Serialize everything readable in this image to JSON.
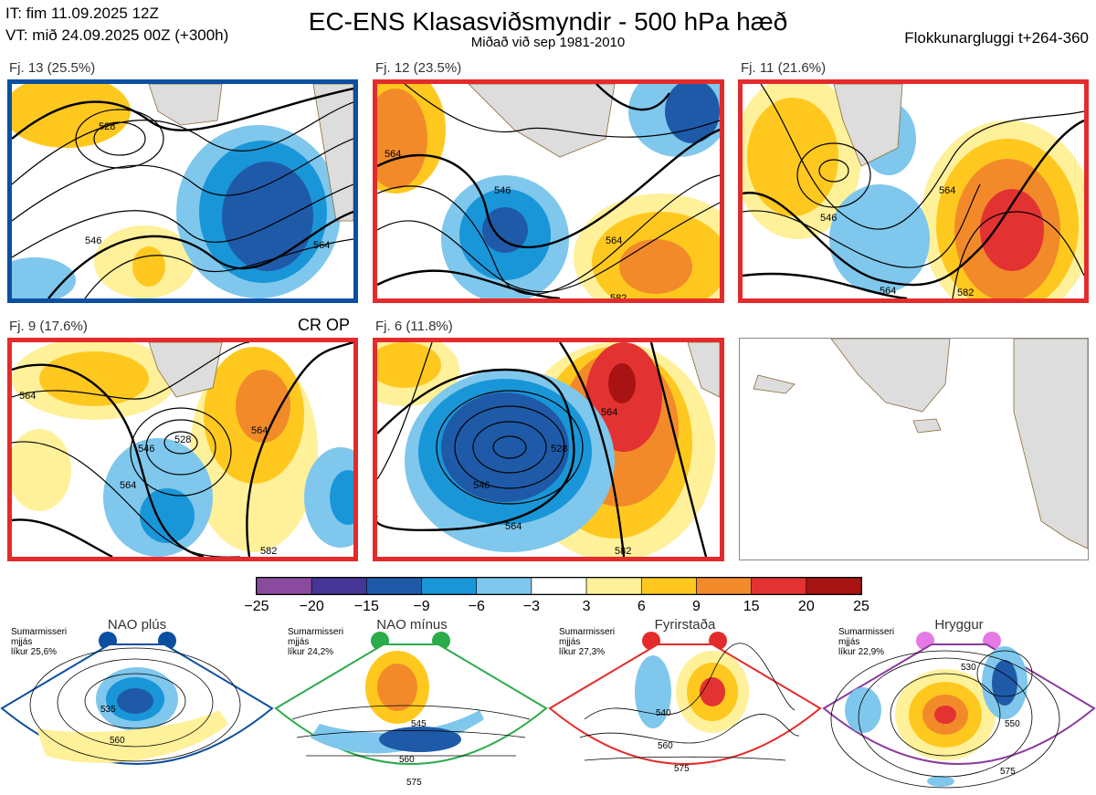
{
  "header": {
    "it_line": "IT: fim 11.09.2025 12Z",
    "vt_line": "VT: mið 24.09.2025 00Z  (+300h)",
    "title": "EC-ENS Klasasviðsmyndir - 500 hPa hæð",
    "subtitle": "Miðað við sep 1981-2010",
    "window": "Flokkunargluggi t+264-360"
  },
  "panels": [
    {
      "label": "Fj. 13 (25.5%)",
      "border": "#0b4fa0"
    },
    {
      "label": "Fj. 12 (23.5%)",
      "border": "#e42b2b"
    },
    {
      "label": "Fj. 11 (21.6%)",
      "border": "#e42b2b"
    },
    {
      "label": "Fj. 9 (17.6%)",
      "border": "#e42b2b"
    },
    {
      "label": "Fj. 6 (11.8%)",
      "border": "#e42b2b"
    }
  ],
  "crop_label": "CR OP",
  "contour_labels": [
    "528",
    "546",
    "564",
    "582"
  ],
  "chart_data": {
    "type": "heatmap",
    "colorbar": {
      "ticks": [
        "−25",
        "−20",
        "−15",
        "−9",
        "−6",
        "−3",
        "3",
        "6",
        "9",
        "15",
        "20",
        "25"
      ],
      "colors": [
        "#8a4a9e",
        "#453595",
        "#1f5aa8",
        "#1996d8",
        "#7fc7ec",
        "#ffffff",
        "#fff09a",
        "#ffc81e",
        "#f28a2a",
        "#e33232",
        "#a81313"
      ]
    }
  },
  "regimes": [
    {
      "name": "NAO plús",
      "color": "#0b4fa0",
      "season": "Sumarmisseri",
      "smooth": "mjjás",
      "prob": "líkur 25,6%",
      "labels": [
        "535",
        "560"
      ]
    },
    {
      "name": "NAO mínus",
      "color": "#2bab4a",
      "season": "Sumarmisseri",
      "smooth": "mjjás",
      "prob": "líkur 24,2%",
      "labels": [
        "545",
        "560",
        "575"
      ]
    },
    {
      "name": "Fyrirstaða",
      "color": "#e42b2b",
      "season": "Sumarmisseri",
      "smooth": "mjjás",
      "prob": "líkur 27,3%",
      "labels": [
        "540",
        "560",
        "575"
      ]
    },
    {
      "name": "Hryggur",
      "color": "#e57ae5",
      "season": "Sumarmisseri",
      "smooth": "mjjás",
      "prob": "líkur 22,9%",
      "labels": [
        "530",
        "550",
        "575"
      ]
    }
  ]
}
